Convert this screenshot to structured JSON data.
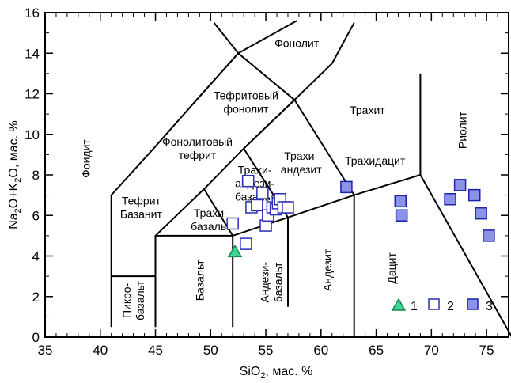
{
  "chart_data": {
    "type": "scatter",
    "title": "",
    "xlabel": {
      "pre": "SiO",
      "sub": "2",
      "post": ", мас. %"
    },
    "ylabel": {
      "a": "Na",
      "s1": "2",
      "b": "O+K",
      "s2": "2",
      "c": "O, мас. %"
    },
    "xlim": [
      35,
      77
    ],
    "ylim": [
      0,
      16
    ],
    "xticks": [
      35,
      40,
      45,
      50,
      55,
      60,
      65,
      70,
      75
    ],
    "yticks": [
      0,
      2,
      4,
      6,
      8,
      10,
      12,
      14,
      16
    ],
    "grid": false,
    "legend": {
      "position": "bottom-right"
    },
    "field_boundaries": [
      [
        [
          41,
          0.5
        ],
        [
          41,
          7
        ],
        [
          45,
          9.4
        ],
        [
          48.4,
          11.5
        ],
        [
          52.5,
          14
        ],
        [
          57.6,
          11.7
        ],
        [
          53,
          9.3
        ],
        [
          49.4,
          7.3
        ],
        [
          45,
          5
        ],
        [
          45,
          0.5
        ]
      ],
      [
        [
          41,
          3
        ],
        [
          45,
          3
        ]
      ],
      [
        [
          45,
          5
        ],
        [
          52,
          5
        ],
        [
          57,
          5.9
        ],
        [
          63,
          7
        ],
        [
          69,
          8
        ],
        [
          77.3,
          0
        ]
      ],
      [
        [
          52,
          0.5
        ],
        [
          52,
          5
        ]
      ],
      [
        [
          57,
          1.5
        ],
        [
          57,
          5.9
        ]
      ],
      [
        [
          63,
          0
        ],
        [
          63,
          7
        ]
      ],
      [
        [
          69,
          8
        ],
        [
          69,
          13
        ]
      ],
      [
        [
          49.4,
          7.3
        ],
        [
          52,
          5
        ]
      ],
      [
        [
          53,
          9.3
        ],
        [
          57,
          5.9
        ]
      ],
      [
        [
          53,
          9.3
        ],
        [
          57.6,
          11.7
        ]
      ],
      [
        [
          57.6,
          11.7
        ],
        [
          61,
          13.5
        ]
      ],
      [
        [
          57.6,
          11.7
        ],
        [
          63,
          7
        ]
      ],
      [
        [
          52.5,
          14
        ],
        [
          57.8,
          15.6
        ]
      ],
      [
        [
          52.5,
          14
        ],
        [
          48.4,
          11.5
        ]
      ],
      [
        [
          50.3,
          15.5
        ],
        [
          52.5,
          14
        ]
      ],
      [
        [
          61,
          13.5
        ],
        [
          63,
          15.5
        ]
      ]
    ],
    "field_labels": [
      {
        "lines": [
          "Фонолит"
        ],
        "x": 57.8,
        "y": 14.5,
        "rotate": 0
      },
      {
        "lines": [
          "Тефритовый",
          "фонолит"
        ],
        "x": 53.2,
        "y": 11.6,
        "rotate": 0
      },
      {
        "lines": [
          "Трахит"
        ],
        "x": 64.2,
        "y": 11.2,
        "rotate": 0
      },
      {
        "lines": [
          "Фонолитовый",
          "тефрит"
        ],
        "x": 48.8,
        "y": 9.3,
        "rotate": 0
      },
      {
        "lines": [
          "Фоидит"
        ],
        "x": 38.7,
        "y": 8.8,
        "rotate": -90
      },
      {
        "lines": [
          "Трахи-",
          "андезит"
        ],
        "x": 58.2,
        "y": 8.6,
        "rotate": 0
      },
      {
        "lines": [
          "Трахидацит"
        ],
        "x": 64.9,
        "y": 8.7,
        "rotate": 0
      },
      {
        "lines": [
          "Риолит"
        ],
        "x": 72.8,
        "y": 10.2,
        "rotate": -90
      },
      {
        "lines": [
          "Трахи-",
          "андези-",
          "базальт"
        ],
        "x": 54.0,
        "y": 7.6,
        "rotate": 0
      },
      {
        "lines": [
          "Тефрит",
          "Базанит"
        ],
        "x": 43.7,
        "y": 6.4,
        "rotate": 0
      },
      {
        "lines": [
          "Трахи-",
          "базальт"
        ],
        "x": 50.0,
        "y": 5.8,
        "rotate": 0
      },
      {
        "lines": [
          "Пикро-",
          "базальт"
        ],
        "x": 43.0,
        "y": 1.8,
        "rotate": -90
      },
      {
        "lines": [
          "Базальт"
        ],
        "x": 49.0,
        "y": 2.8,
        "rotate": -90
      },
      {
        "lines": [
          "Андези-",
          "базальт"
        ],
        "x": 55.5,
        "y": 2.7,
        "rotate": -90
      },
      {
        "lines": [
          "Андезит"
        ],
        "x": 60.6,
        "y": 3.3,
        "rotate": -90
      },
      {
        "lines": [
          "Дацит"
        ],
        "x": 66.4,
        "y": 3.4,
        "rotate": -90
      }
    ],
    "series": [
      {
        "name": "1",
        "marker": "triangle",
        "color": "#3dd68c",
        "stroke": "#1a8a55",
        "points": [
          [
            52.2,
            4.2
          ]
        ]
      },
      {
        "name": "2",
        "marker": "square-open",
        "color": "#ffffff",
        "stroke": "#2b2fb8",
        "points": [
          [
            52.0,
            5.6
          ],
          [
            53.2,
            4.6
          ],
          [
            53.4,
            7.7
          ],
          [
            53.7,
            6.4
          ],
          [
            54.2,
            6.5
          ],
          [
            54.7,
            7.1
          ],
          [
            55.0,
            5.5
          ],
          [
            55.2,
            6.0
          ],
          [
            55.6,
            6.4
          ],
          [
            55.9,
            6.3
          ],
          [
            56.1,
            6.6
          ],
          [
            56.3,
            6.8
          ],
          [
            56.6,
            6.4
          ],
          [
            57.0,
            6.4
          ]
        ]
      },
      {
        "name": "3",
        "marker": "square-filled",
        "color": "#8c92e6",
        "stroke": "#1e23a8",
        "points": [
          [
            62.3,
            7.4
          ],
          [
            67.2,
            6.7
          ],
          [
            67.3,
            6.0
          ],
          [
            71.7,
            6.8
          ],
          [
            72.6,
            7.5
          ],
          [
            73.9,
            7.0
          ],
          [
            74.5,
            6.1
          ],
          [
            75.2,
            5.0
          ]
        ]
      }
    ]
  }
}
